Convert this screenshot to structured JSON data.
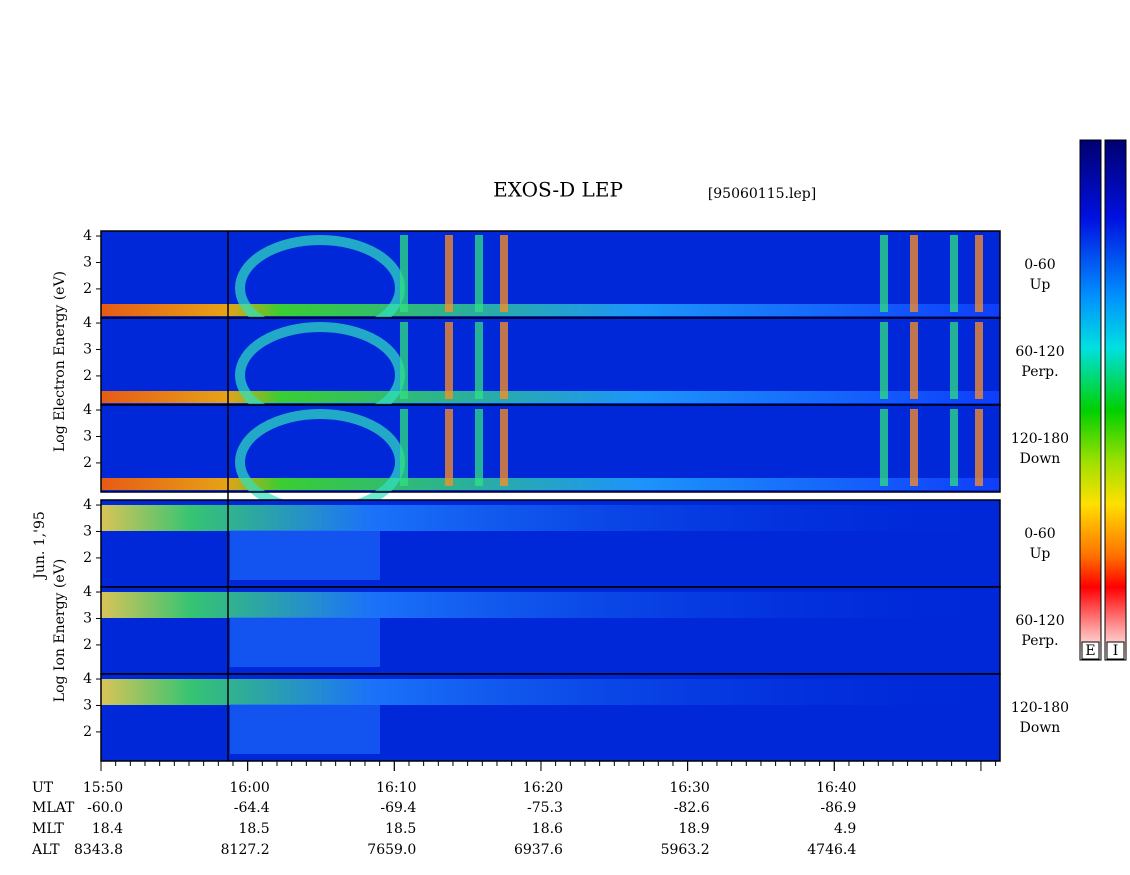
{
  "chart_data": {
    "type": "spectrogram",
    "title": "EXOS-D LEP",
    "file": "[95060115.lep]",
    "date": "Jun. 1,'95",
    "groups": [
      {
        "label": "Log Electron Energy (eV)",
        "panels": [
          {
            "angle": "0-60",
            "direction": "Up"
          },
          {
            "angle": "60-120",
            "direction": "Perp."
          },
          {
            "angle": "120-180",
            "direction": "Down"
          }
        ]
      },
      {
        "label": "Log Ion Energy (eV)",
        "panels": [
          {
            "angle": "0-60",
            "direction": "Up"
          },
          {
            "angle": "60-120",
            "direction": "Perp."
          },
          {
            "angle": "120-180",
            "direction": "Down"
          }
        ]
      }
    ],
    "ylim": [
      0.9,
      4.19
    ],
    "yticks": [
      2,
      3,
      4
    ],
    "xlabel": "UT",
    "xlim": [
      0,
      61.3
    ],
    "xticks": [
      {
        "value": 0,
        "label": "15:50"
      },
      {
        "value": 10,
        "label": "16:00"
      },
      {
        "value": 20,
        "label": "16:10"
      },
      {
        "value": 30,
        "label": "16:20"
      },
      {
        "value": 40,
        "label": "16:30"
      },
      {
        "value": 50,
        "label": "16:40"
      }
    ],
    "ephemeris": [
      {
        "name": "MLAT",
        "values": [
          "-60.0",
          "-64.4",
          "-69.4",
          "-75.3",
          "-82.6",
          "-86.9"
        ]
      },
      {
        "name": "MLT",
        "values": [
          "18.4",
          "18.5",
          "18.5",
          "18.6",
          "18.9",
          "4.9"
        ]
      },
      {
        "name": "ALT",
        "values": [
          "8343.8",
          "8127.2",
          "7659.0",
          "6937.6",
          "5963.2",
          "4746.4"
        ]
      }
    ],
    "colorbars": [
      "E",
      "I"
    ]
  }
}
